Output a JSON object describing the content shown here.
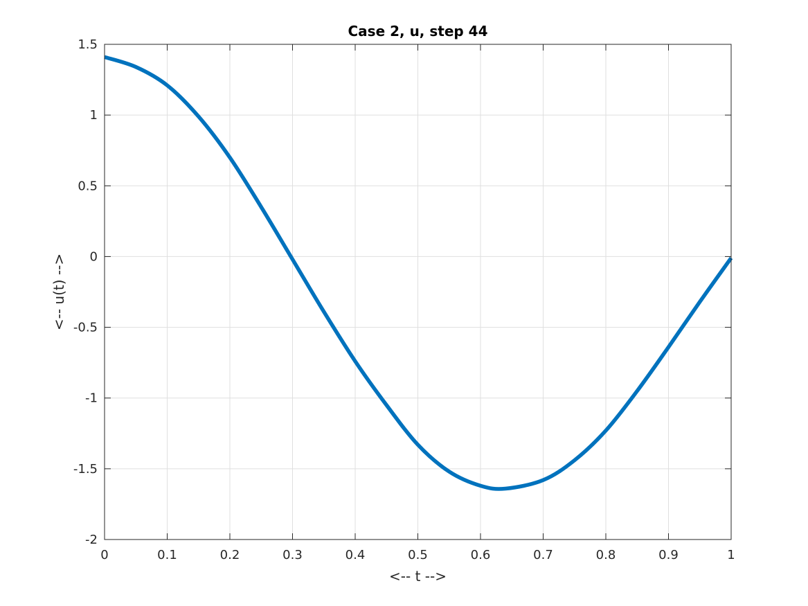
{
  "chart_data": {
    "type": "line",
    "title": "Case 2, u, step 44",
    "xlabel": "<-- t -->",
    "ylabel": "<-- u(t) -->",
    "xlim": [
      0,
      1
    ],
    "ylim": [
      -2,
      1.5
    ],
    "xticks": [
      0,
      0.1,
      0.2,
      0.3,
      0.4,
      0.5,
      0.6,
      0.7,
      0.8,
      0.9,
      1
    ],
    "xtick_labels": [
      "0",
      "0.1",
      "0.2",
      "0.3",
      "0.4",
      "0.5",
      "0.6",
      "0.7",
      "0.8",
      "0.9",
      "1"
    ],
    "yticks": [
      -2,
      -1.5,
      -1,
      -0.5,
      0,
      0.5,
      1,
      1.5
    ],
    "ytick_labels": [
      "-2",
      "-1.5",
      "-1",
      "-0.5",
      "0",
      "0.5",
      "1",
      "1.5"
    ],
    "grid": true,
    "series": [
      {
        "color": "#0072bd",
        "x": [
          0,
          0.05,
          0.1,
          0.15,
          0.2,
          0.25,
          0.3,
          0.35,
          0.4,
          0.45,
          0.5,
          0.55,
          0.6,
          0.64,
          0.7,
          0.75,
          0.8,
          0.85,
          0.9,
          0.95,
          1.0
        ],
        "y": [
          1.41,
          1.34,
          1.21,
          0.99,
          0.7,
          0.35,
          -0.02,
          -0.39,
          -0.74,
          -1.05,
          -1.33,
          -1.52,
          -1.62,
          -1.64,
          -1.58,
          -1.44,
          -1.23,
          -0.95,
          -0.64,
          -0.32,
          -0.01
        ]
      }
    ]
  }
}
